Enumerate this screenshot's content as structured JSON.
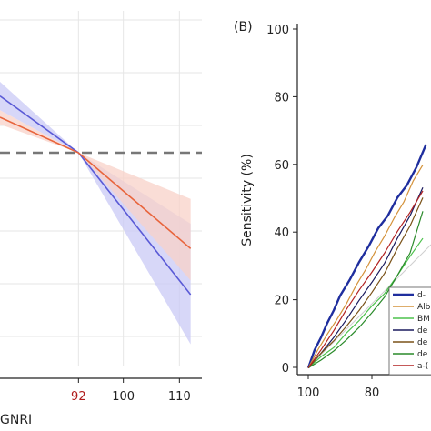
{
  "colors": {
    "blue": "#5a5ad6",
    "blue_band": "#c9c9f5",
    "orange": "#e8643c",
    "orange_band": "#f8d2c8",
    "ref_dash": "#777777",
    "grid": "#e6e6e6",
    "axis": "#222222",
    "red_tick": "#b01c1c"
  },
  "chart_data": [
    {
      "type": "line",
      "panel_label": "",
      "xlabel": "GNRI",
      "ylabel": "",
      "xticks": [
        "92",
        "100",
        "110"
      ],
      "highlight_tick": "92",
      "xlim": [
        78,
        114
      ],
      "ylim": [
        0,
        1
      ],
      "grid": true,
      "reference_line": {
        "y": 0.6,
        "style": "dashed"
      },
      "x": [
        78,
        92,
        112
      ],
      "series": [
        {
          "name": "",
          "color": "blue",
          "values": [
            0.76,
            0.6,
            0.2
          ],
          "band_lower": [
            0.72,
            0.6,
            0.06
          ],
          "band_upper": [
            0.8,
            0.6,
            0.4
          ]
        },
        {
          "name": "",
          "color": "orange",
          "values": [
            0.7,
            0.6,
            0.33
          ],
          "band_lower": [
            0.68,
            0.6,
            0.24
          ],
          "band_upper": [
            0.72,
            0.6,
            0.47
          ]
        }
      ]
    },
    {
      "type": "line",
      "panel_label": "(B)",
      "xlabel": "",
      "ylabel": "Sensitivity (%)",
      "yticks": [
        "0",
        "20",
        "40",
        "60",
        "80",
        "100"
      ],
      "xticks": [
        "100",
        "80"
      ],
      "xlim": [
        100,
        0
      ],
      "ylim": [
        0,
        100
      ],
      "legend_position": "bottom-right",
      "legend": [
        "d-",
        "Alb",
        "BM",
        "de",
        "de",
        "de",
        "a-("
      ],
      "series": [
        {
          "label_index": 0,
          "color": "#1f2e9e",
          "width": 2.4,
          "x": [
            100,
            98,
            96,
            94,
            92,
            90,
            87,
            84,
            81,
            78,
            75,
            72,
            69,
            66,
            63
          ],
          "y": [
            0,
            5,
            9,
            13,
            17,
            21,
            26,
            31,
            36,
            41,
            45,
            50,
            54,
            59,
            66
          ]
        },
        {
          "label_index": 1,
          "color": "#d4923a",
          "width": 1.2,
          "x": [
            100,
            97,
            94,
            91,
            88,
            85,
            82,
            79,
            76,
            73,
            70,
            67,
            64
          ],
          "y": [
            0,
            5,
            10,
            14,
            19,
            24,
            29,
            34,
            39,
            44,
            49,
            55,
            60
          ]
        },
        {
          "label_index": 2,
          "color": "#4dc24d",
          "width": 1.2,
          "x": [
            100,
            96,
            92,
            88,
            84,
            80,
            76,
            72,
            68,
            64
          ],
          "y": [
            0,
            3,
            6,
            10,
            14,
            18,
            22,
            27,
            33,
            38
          ]
        },
        {
          "label_index": 3,
          "color": "#1a1a5e",
          "width": 1.2,
          "x": [
            100,
            96,
            92,
            88,
            84,
            80,
            76,
            72,
            68,
            64
          ],
          "y": [
            0,
            4,
            9,
            14,
            20,
            25,
            31,
            38,
            45,
            53
          ]
        },
        {
          "label_index": 4,
          "color": "#7a5218",
          "width": 1.2,
          "x": [
            100,
            96,
            92,
            88,
            84,
            80,
            76,
            72,
            68,
            64
          ],
          "y": [
            0,
            4,
            8,
            12,
            17,
            22,
            28,
            35,
            42,
            50
          ]
        },
        {
          "label_index": 5,
          "color": "#2a8a2a",
          "width": 1.2,
          "x": [
            100,
            96,
            92,
            88,
            84,
            80,
            76,
            72,
            68,
            64
          ],
          "y": [
            0,
            2,
            5,
            8,
            12,
            16,
            21,
            27,
            34,
            46
          ]
        },
        {
          "label_index": 6,
          "color": "#b22222",
          "width": 1.2,
          "x": [
            100,
            96,
            92,
            88,
            84,
            80,
            76,
            72,
            68,
            64
          ],
          "y": [
            0,
            5,
            11,
            17,
            23,
            28,
            34,
            40,
            46,
            52
          ]
        }
      ],
      "diagonal": true
    }
  ]
}
